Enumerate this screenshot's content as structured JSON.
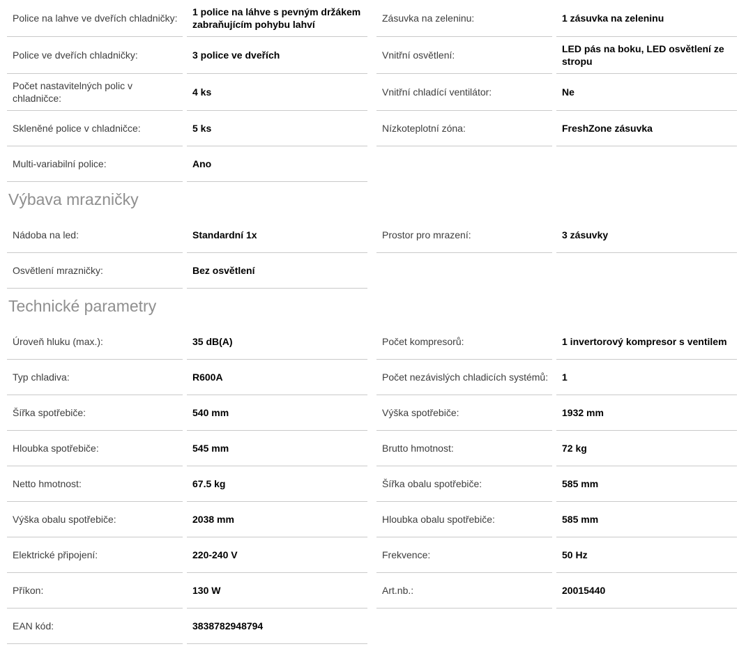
{
  "colors": {
    "divider": "#c9c9c9",
    "label": "#3d3d3d",
    "value": "#000000",
    "heading": "#8f8f8f"
  },
  "sections": [
    {
      "heading": null,
      "rows": [
        {
          "left": {
            "label": "Police na lahve ve dveřích chladničky:",
            "value": "1 police na láhve s pevným držákem zabraňujícím pohybu lahví"
          },
          "right": {
            "label": "Zásuvka na zeleninu:",
            "value": "1 zásuvka na zeleninu"
          }
        },
        {
          "left": {
            "label": "Police ve dveřích chladničky:",
            "value": "3 police ve dveřích"
          },
          "right": {
            "label": "Vnitřní osvětlení:",
            "value": "LED pás na boku, LED osvětlení ze stropu"
          }
        },
        {
          "left": {
            "label": "Počet nastavitelných polic v chladničce:",
            "value": "4 ks"
          },
          "right": {
            "label": "Vnitřní chladící ventilátor:",
            "value": "Ne"
          }
        },
        {
          "left": {
            "label": "Skleněné police v chladničce:",
            "value": "5 ks"
          },
          "right": {
            "label": "Nízkoteplotní zóna:",
            "value": "FreshZone zásuvka"
          }
        },
        {
          "left": {
            "label": "Multi-variabilní police:",
            "value": "Ano"
          },
          "right": null
        }
      ]
    },
    {
      "heading": "Výbava mrazničky",
      "rows": [
        {
          "left": {
            "label": "Nádoba na led:",
            "value": "Standardní 1x"
          },
          "right": {
            "label": "Prostor pro mrazení:",
            "value": "3 zásuvky"
          }
        },
        {
          "left": {
            "label": "Osvětlení mrazničky:",
            "value": "Bez osvětlení"
          },
          "right": null
        }
      ]
    },
    {
      "heading": "Technické parametry",
      "rows": [
        {
          "left": {
            "label": "Úroveň hluku (max.):",
            "value": "35 dB(A)"
          },
          "right": {
            "label": "Počet kompresorů:",
            "value": "1 invertorový kompresor s ventilem"
          }
        },
        {
          "left": {
            "label": "Typ chladiva:",
            "value": "R600A"
          },
          "right": {
            "label": "Počet nezávislých chladicích systémů:",
            "value": "1"
          }
        },
        {
          "left": {
            "label": "Šířka spotřebiče:",
            "value": "540 mm"
          },
          "right": {
            "label": "Výška spotřebiče:",
            "value": "1932 mm"
          }
        },
        {
          "left": {
            "label": "Hloubka spotřebiče:",
            "value": "545 mm"
          },
          "right": {
            "label": "Brutto hmotnost:",
            "value": "72 kg"
          }
        },
        {
          "left": {
            "label": "Netto hmotnost:",
            "value": "67.5 kg"
          },
          "right": {
            "label": "Šířka obalu spotřebiče:",
            "value": "585 mm"
          }
        },
        {
          "left": {
            "label": "Výška obalu spotřebiče:",
            "value": "2038 mm"
          },
          "right": {
            "label": "Hloubka obalu spotřebiče:",
            "value": "585 mm"
          }
        },
        {
          "left": {
            "label": "Elektrické připojení:",
            "value": "220-240 V"
          },
          "right": {
            "label": "Frekvence:",
            "value": "50 Hz"
          }
        },
        {
          "left": {
            "label": "Příkon:",
            "value": "130 W"
          },
          "right": {
            "label": "Art.nb.:",
            "value": "20015440"
          }
        },
        {
          "left": {
            "label": "EAN kód:",
            "value": "3838782948794"
          },
          "right": null
        }
      ]
    }
  ]
}
